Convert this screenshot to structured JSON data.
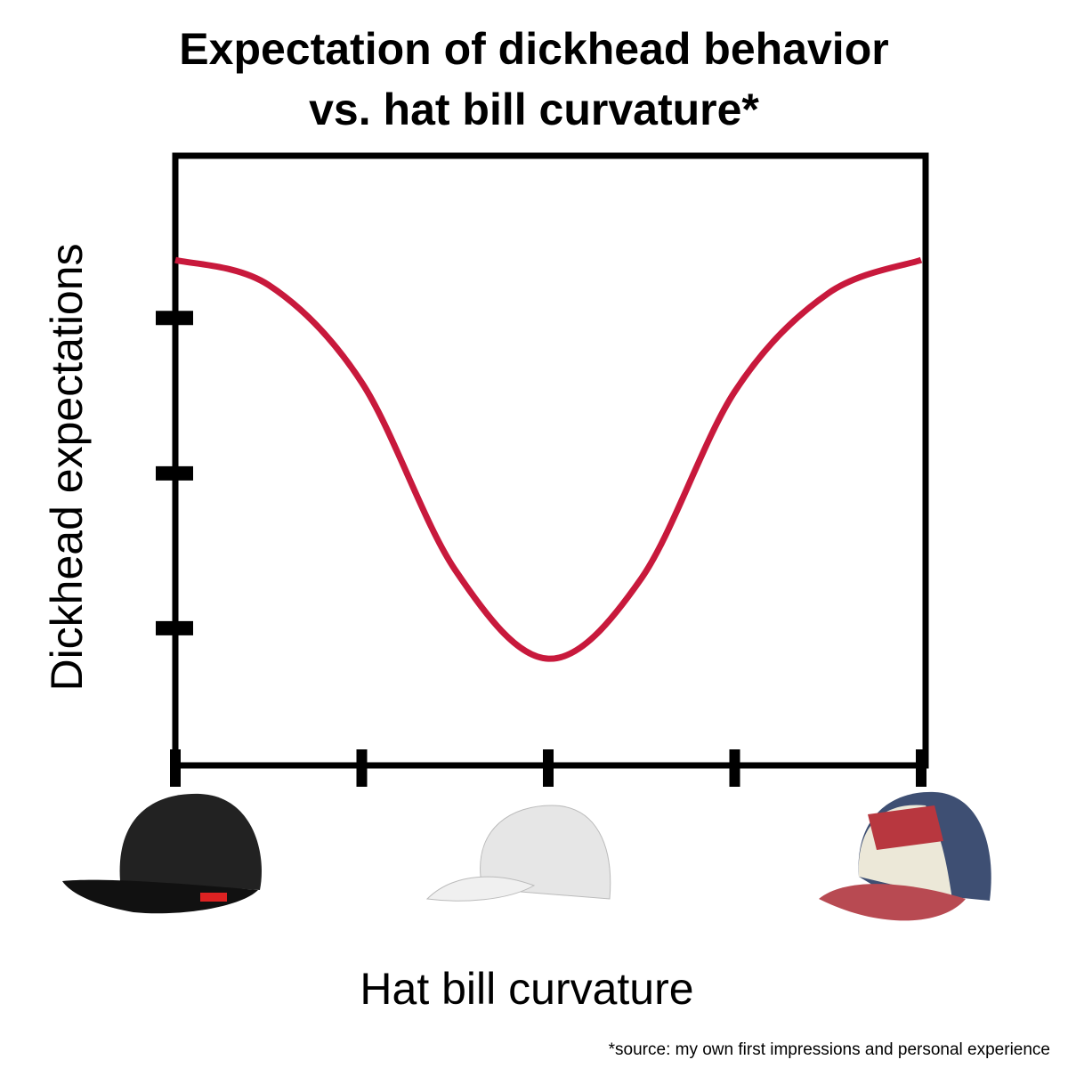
{
  "chart_data": {
    "type": "line",
    "title": [
      "Expectation of dickhead behavior",
      "vs. hat bill curvature*"
    ],
    "xlabel": "Hat bill curvature",
    "ylabel": "Dickhead expectations",
    "footnote": "*source: my own first impressions and personal experience",
    "x": [
      0,
      0.5,
      1,
      1.5,
      2,
      2.5,
      3,
      3.5,
      4
    ],
    "series": [
      {
        "color": "#c8193c",
        "values": [
          0.829,
          0.788,
          0.628,
          0.321,
          0.175,
          0.307,
          0.613,
          0.774,
          0.829
        ]
      }
    ],
    "xlim": [
      0,
      4
    ],
    "xticks": [
      0,
      1,
      2,
      3,
      4
    ],
    "ylim": [
      0,
      1
    ],
    "yticks": [
      0.225,
      0.479,
      0.734
    ]
  }
}
